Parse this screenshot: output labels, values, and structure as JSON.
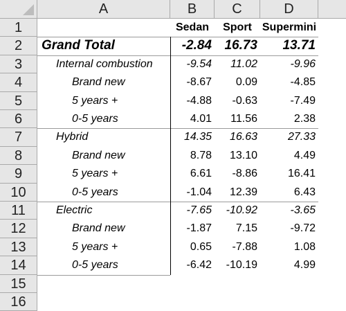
{
  "columns": [
    "A",
    "B",
    "C",
    "D"
  ],
  "rows": [
    "1",
    "2",
    "3",
    "4",
    "5",
    "6",
    "7",
    "8",
    "9",
    "10",
    "11",
    "12",
    "13",
    "14",
    "15",
    "16"
  ],
  "header_row": {
    "b": "Sedan",
    "c": "Sport",
    "d": "Supermini"
  },
  "grand_total": {
    "label": "Grand Total",
    "b": "-2.84",
    "c": "16.73",
    "d": "13.71"
  },
  "groups": [
    {
      "label": "Internal combustion",
      "b": "-9.54",
      "c": "11.02",
      "d": "-9.96",
      "items": [
        {
          "label": "Brand new",
          "b": "-8.67",
          "c": "0.09",
          "d": "-4.85"
        },
        {
          "label": "5 years +",
          "b": "-4.88",
          "c": "-0.63",
          "d": "-7.49"
        },
        {
          "label": "0-5 years",
          "b": "4.01",
          "c": "11.56",
          "d": "2.38"
        }
      ]
    },
    {
      "label": "Hybrid",
      "b": "14.35",
      "c": "16.63",
      "d": "27.33",
      "items": [
        {
          "label": "Brand new",
          "b": "8.78",
          "c": "13.10",
          "d": "4.49"
        },
        {
          "label": "5 years +",
          "b": "6.61",
          "c": "-8.86",
          "d": "16.41"
        },
        {
          "label": "0-5 years",
          "b": "-1.04",
          "c": "12.39",
          "d": "6.43"
        }
      ]
    },
    {
      "label": "Electric",
      "b": "-7.65",
      "c": "-10.92",
      "d": "-3.65",
      "items": [
        {
          "label": "Brand new",
          "b": "-1.87",
          "c": "7.15",
          "d": "-9.72"
        },
        {
          "label": "5 years +",
          "b": "0.65",
          "c": "-7.88",
          "d": "1.08"
        },
        {
          "label": "0-5 years",
          "b": "-6.42",
          "c": "-10.19",
          "d": "4.99"
        }
      ]
    }
  ]
}
